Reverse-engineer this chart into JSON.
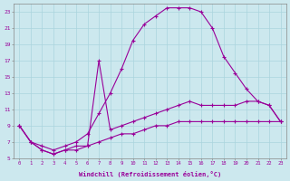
{
  "xlabel": "Windchill (Refroidissement éolien,°C)",
  "background_color": "#cce8ee",
  "line_color": "#990099",
  "xlim": [
    -0.5,
    23.5
  ],
  "ylim": [
    5,
    24
  ],
  "xticks": [
    0,
    1,
    2,
    3,
    4,
    5,
    6,
    7,
    8,
    9,
    10,
    11,
    12,
    13,
    14,
    15,
    16,
    17,
    18,
    19,
    20,
    21,
    22,
    23
  ],
  "yticks": [
    5,
    7,
    9,
    11,
    13,
    15,
    17,
    19,
    21,
    23
  ],
  "curve_big_x": [
    0,
    1,
    2,
    3,
    4,
    5,
    6,
    7,
    8,
    9,
    10,
    11,
    12,
    13,
    14,
    15,
    16,
    17,
    18,
    19,
    20,
    21,
    22,
    23
  ],
  "curve_big_y": [
    9,
    7,
    6.5,
    6,
    6.5,
    7,
    8,
    10.5,
    13,
    16,
    19.5,
    21.5,
    22.5,
    23.5,
    23.5,
    23.5,
    23,
    21,
    17.5,
    15.5,
    13.5,
    12,
    11.5,
    9.5
  ],
  "curve_mid_x": [
    0,
    1,
    2,
    3,
    4,
    5,
    6,
    7,
    8,
    9,
    10,
    11,
    12,
    13,
    14,
    15,
    16,
    17,
    18,
    19,
    20,
    21,
    22,
    23
  ],
  "curve_mid_y": [
    9,
    7,
    6,
    5.5,
    6,
    6.5,
    6.5,
    17,
    8.5,
    9,
    9.5,
    10,
    10.5,
    11,
    11.5,
    12,
    11.5,
    11.5,
    11.5,
    11.5,
    12,
    12,
    11.5,
    9.5
  ],
  "curve_flat_x": [
    0,
    1,
    2,
    3,
    4,
    5,
    6,
    7,
    8,
    9,
    10,
    11,
    12,
    13,
    14,
    15,
    16,
    17,
    18,
    19,
    20,
    21,
    22,
    23
  ],
  "curve_flat_y": [
    9,
    7,
    6,
    5.5,
    6,
    6,
    6.5,
    7,
    7.5,
    8,
    8,
    8.5,
    9,
    9,
    9.5,
    9.5,
    9.5,
    9.5,
    9.5,
    9.5,
    9.5,
    9.5,
    9.5,
    9.5
  ]
}
